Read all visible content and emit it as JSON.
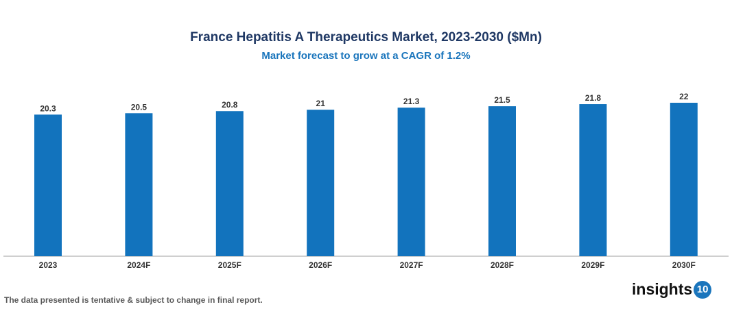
{
  "chart_data": {
    "type": "bar",
    "title": "France Hepatitis A Therapeutics Market, 2023-2030 ($Mn)",
    "subtitle": "Market forecast to grow at a CAGR of 1.2%",
    "categories": [
      "2023",
      "2024F",
      "2025F",
      "2026F",
      "2027F",
      "2028F",
      "2029F",
      "2030F"
    ],
    "values": [
      20.3,
      20.5,
      20.8,
      21,
      21.3,
      21.5,
      21.8,
      22
    ],
    "data_labels": [
      "20.3",
      "20.5",
      "20.8",
      "21",
      "21.3",
      "21.5",
      "21.8",
      "22"
    ],
    "xlabel": "",
    "ylabel": "",
    "ylim": [
      0,
      22
    ],
    "grid": false,
    "bar_color": "#1273bd"
  },
  "footnote": "The data presented is tentative & subject to change in final report.",
  "logo": {
    "text": "insights",
    "badge": "10"
  }
}
